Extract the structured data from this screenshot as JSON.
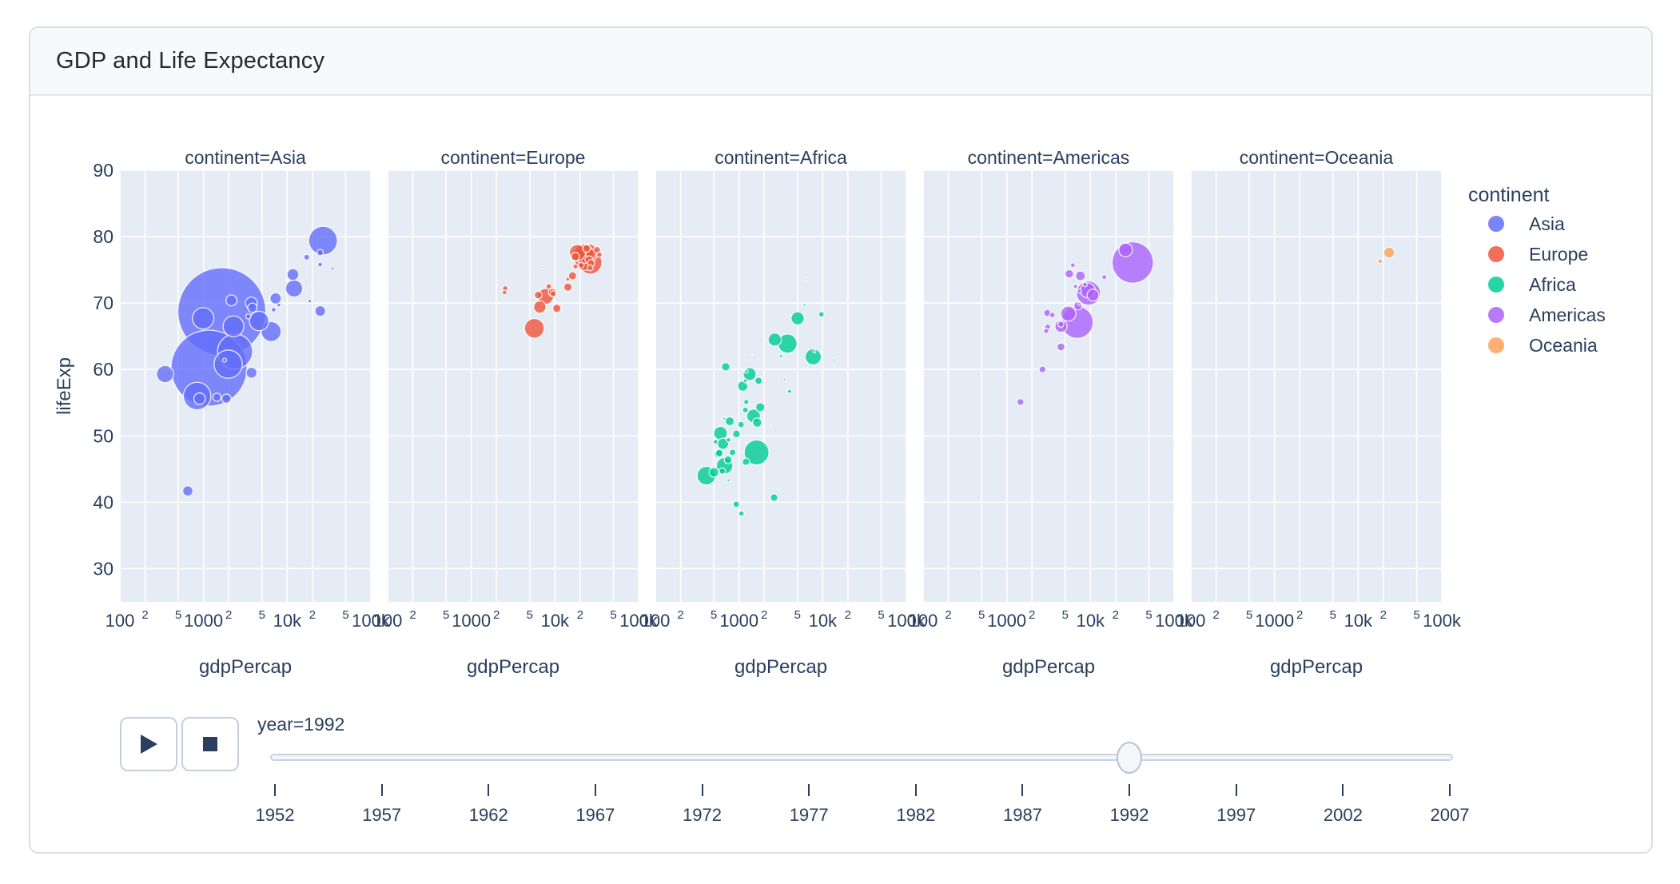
{
  "card": {
    "title": "GDP and Life Expectancy"
  },
  "colors": {
    "plot_background": "#E5ECF6",
    "grid": "#ffffff",
    "text": "#2a3f5f",
    "button_icon": "#2a3f5f"
  },
  "legend": {
    "title": "continent",
    "items": [
      {
        "label": "Asia",
        "color": "#636EFA"
      },
      {
        "label": "Europe",
        "color": "#EF553B"
      },
      {
        "label": "Africa",
        "color": "#00CC96"
      },
      {
        "label": "Americas",
        "color": "#AB63FA"
      },
      {
        "label": "Oceania",
        "color": "#FFA15A"
      }
    ]
  },
  "animation": {
    "current_label": "year=1992",
    "current_year": "1992",
    "years": [
      "1952",
      "1957",
      "1962",
      "1967",
      "1972",
      "1977",
      "1982",
      "1987",
      "1992",
      "1997",
      "2002",
      "2007"
    ]
  },
  "chart_data": {
    "type": "scatter",
    "title": "GDP and Life Expectancy",
    "xlabel": "gdpPercap",
    "ylabel": "lifeExp",
    "x_scale": "log",
    "xlim": [
      100,
      100000
    ],
    "ylim": [
      25,
      90
    ],
    "grid": true,
    "y_ticks": [
      30,
      40,
      50,
      60,
      70,
      80,
      90
    ],
    "x_gridlines": [
      100,
      200,
      500,
      1000,
      2000,
      5000,
      10000,
      20000,
      50000,
      100000
    ],
    "x_major_labels": {
      "100": "100",
      "1000": "1000",
      "10000": "10k",
      "100000": "100k"
    },
    "x_minor_labels": {
      "200": "2",
      "500": "5",
      "2000": "2",
      "5000": "5",
      "20000": "2",
      "50000": "5"
    },
    "legend_position": "right",
    "point_format": [
      "gdpPercap",
      "lifeExp",
      "size_pop_millions"
    ],
    "size_max_ref": 1165,
    "facets": [
      {
        "title": "continent=Asia",
        "continent": "Asia",
        "color": "#636EFA",
        "points": [
          [
            1656,
            68.7,
            1165
          ],
          [
            1164,
            60.2,
            872
          ],
          [
            2383,
            62.7,
            185
          ],
          [
            26825,
            79.4,
            124
          ],
          [
            1972,
            60.8,
            120
          ],
          [
            838,
            56.0,
            114
          ],
          [
            989,
            67.7,
            69
          ],
          [
            2280,
            66.5,
            65
          ],
          [
            6426,
            65.7,
            60
          ],
          [
            4617,
            67.3,
            57
          ],
          [
            12104,
            72.2,
            44
          ],
          [
            347,
            59.3,
            44
          ],
          [
            3727,
            70.0,
            21
          ],
          [
            11712,
            74.3,
            21
          ],
          [
            897,
            55.6,
            20
          ],
          [
            7277,
            70.7,
            19
          ],
          [
            3746,
            59.5,
            18
          ],
          [
            2154,
            70.4,
            18
          ],
          [
            24841,
            68.8,
            17
          ],
          [
            649,
            41.7,
            16
          ],
          [
            1879,
            55.6,
            13
          ],
          [
            3838,
            69.3,
            13
          ],
          [
            1445,
            55.8,
            10
          ],
          [
            24757,
            77.6,
            6
          ],
          [
            17122,
            76.9,
            5
          ],
          [
            3431,
            68.0,
            4
          ],
          [
            24770,
            75.8,
            3.2
          ],
          [
            6890,
            69.0,
            3.2
          ],
          [
            1785,
            61.4,
            2.3
          ],
          [
            7951,
            69.7,
            2.1
          ],
          [
            18617,
            70.3,
            1.9
          ],
          [
            34933,
            75.2,
            1.4
          ],
          [
            19036,
            72.6,
            0.5
          ]
        ]
      },
      {
        "title": "continent=Europe",
        "continent": "Europe",
        "color": "#EF553B",
        "points": [
          [
            26505,
            76.1,
            81
          ],
          [
            22705,
            76.4,
            58
          ],
          [
            5678,
            66.2,
            58
          ],
          [
            24704,
            77.5,
            57
          ],
          [
            22013,
            77.4,
            57
          ],
          [
            18603,
            77.6,
            39
          ],
          [
            7739,
            71.0,
            38
          ],
          [
            6598,
            69.4,
            23
          ],
          [
            26791,
            77.4,
            15
          ],
          [
            14297,
            72.4,
            10.3
          ],
          [
            10536,
            69.2,
            10.3
          ],
          [
            17541,
            77.0,
            10.3
          ],
          [
            25576,
            76.5,
            10
          ],
          [
            16207,
            74.1,
            9.9
          ],
          [
            9325,
            71.6,
            9.8
          ],
          [
            23880,
            78.2,
            8.7
          ],
          [
            6303,
            71.2,
            8.7
          ],
          [
            27042,
            76.0,
            7.9
          ],
          [
            31871,
            78.0,
            6.9
          ],
          [
            9498,
            71.4,
            5.3
          ],
          [
            26407,
            75.3,
            5.2
          ],
          [
            20647,
            75.7,
            5.0
          ],
          [
            8448,
            72.5,
            4.5
          ],
          [
            33965,
            77.3,
            4.3
          ],
          [
            2547,
            72.2,
            4.3
          ],
          [
            17559,
            75.5,
            3.6
          ],
          [
            2497,
            71.6,
            3.3
          ],
          [
            14214,
            73.6,
            2.0
          ],
          [
            7003,
            74.9,
            0.6
          ],
          [
            25144,
            78.8,
            0.26
          ]
        ]
      },
      {
        "title": "continent=Africa",
        "continent": "Africa",
        "color": "#00CC96",
        "points": [
          [
            1619,
            47.5,
            93
          ],
          [
            3794,
            63.9,
            55
          ],
          [
            407,
            44.0,
            52
          ],
          [
            672,
            45.5,
            41
          ],
          [
            7710,
            61.9,
            39
          ],
          [
            601,
            50.4,
            28
          ],
          [
            1492,
            53.0,
            28
          ],
          [
            5023,
            67.7,
            26
          ],
          [
            2671,
            64.5,
            26
          ],
          [
            1341,
            59.3,
            25
          ],
          [
            644,
            48.8,
            19
          ],
          [
            1111,
            57.5,
            16
          ],
          [
            502,
            44.5,
            14
          ],
          [
            1648,
            52.0,
            13
          ],
          [
            1793,
            54.3,
            12.5
          ],
          [
            774,
            52.2,
            12
          ],
          [
            693,
            60.4,
            10.7
          ],
          [
            563,
            47.3,
            10
          ],
          [
            740,
            46.4,
            9
          ],
          [
            931,
            50.3,
            8.9
          ],
          [
            2628,
            40.7,
            8.7
          ],
          [
            581,
            47.4,
            8.3
          ],
          [
            1210,
            46.1,
            8.1
          ],
          [
            1712,
            58.3,
            8
          ],
          [
            737,
            23.6,
            7.3
          ],
          [
            837,
            47.5,
            6.4
          ],
          [
            926,
            39.7,
            6.3
          ],
          [
            1058,
            51.7,
            6
          ],
          [
            631,
            44.7,
            5.8
          ],
          [
            1191,
            53.9,
            5
          ],
          [
            9640,
            68.3,
            4.4
          ],
          [
            1069,
            38.3,
            4.3
          ],
          [
            1222,
            55.1,
            3.9
          ],
          [
            747,
            49.4,
            3.2
          ],
          [
            525,
            49.1,
            3.2
          ],
          [
            4016,
            56.7,
            2.4
          ],
          [
            1191,
            58.3,
            2.1
          ],
          [
            1221,
            59.7,
            1.8
          ],
          [
            3173,
            62.0,
            1.5
          ],
          [
            7954,
            62.7,
            1.35
          ],
          [
            745,
            43.3,
            1.1
          ],
          [
            6058,
            69.7,
            1.1
          ],
          [
            13522,
            61.4,
            1.0
          ],
          [
            665,
            52.6,
            1.0
          ],
          [
            3512,
            58.5,
            0.85
          ],
          [
            6316,
            73.6,
            0.63
          ],
          [
            1246,
            57.9,
            0.45
          ],
          [
            1132,
            47.6,
            0.39
          ],
          [
            2377,
            51.6,
            0.38
          ],
          [
            1429,
            62.2,
            0.13
          ]
        ]
      },
      {
        "title": "continent=Americas",
        "continent": "Americas",
        "color": "#AB63FA",
        "points": [
          [
            32003,
            76.1,
            257
          ],
          [
            6951,
            67.1,
            155
          ],
          [
            9472,
            71.5,
            88
          ],
          [
            5444,
            68.4,
            34
          ],
          [
            9308,
            71.9,
            34
          ],
          [
            26343,
            78.0,
            28
          ],
          [
            4446,
            66.5,
            22
          ],
          [
            10733,
            71.2,
            21
          ],
          [
            7596,
            74.1,
            14
          ],
          [
            7103,
            69.6,
            10.7
          ],
          [
            5592,
            74.4,
            10.7
          ],
          [
            4439,
            63.4,
            9.3
          ],
          [
            3044,
            68.5,
            7.3
          ],
          [
            1456,
            55.1,
            7.0
          ],
          [
            2674,
            60.0,
            6.9
          ],
          [
            4444,
            66.8,
            5.3
          ],
          [
            3081,
            66.4,
            5.1
          ],
          [
            3507,
            68.2,
            4.4
          ],
          [
            2955,
            65.8,
            4.0
          ],
          [
            14641,
            73.9,
            3.6
          ],
          [
            6160,
            75.7,
            3.2
          ],
          [
            8623,
            72.8,
            3.1
          ],
          [
            6619,
            72.5,
            2.5
          ],
          [
            7404,
            71.8,
            2.4
          ],
          [
            7388,
            69.9,
            1.2
          ]
        ]
      },
      {
        "title": "continent=Oceania",
        "continent": "Oceania",
        "color": "#FFA15A",
        "points": [
          [
            23424,
            77.6,
            17.5
          ],
          [
            18363,
            76.3,
            3.4
          ]
        ]
      }
    ]
  }
}
